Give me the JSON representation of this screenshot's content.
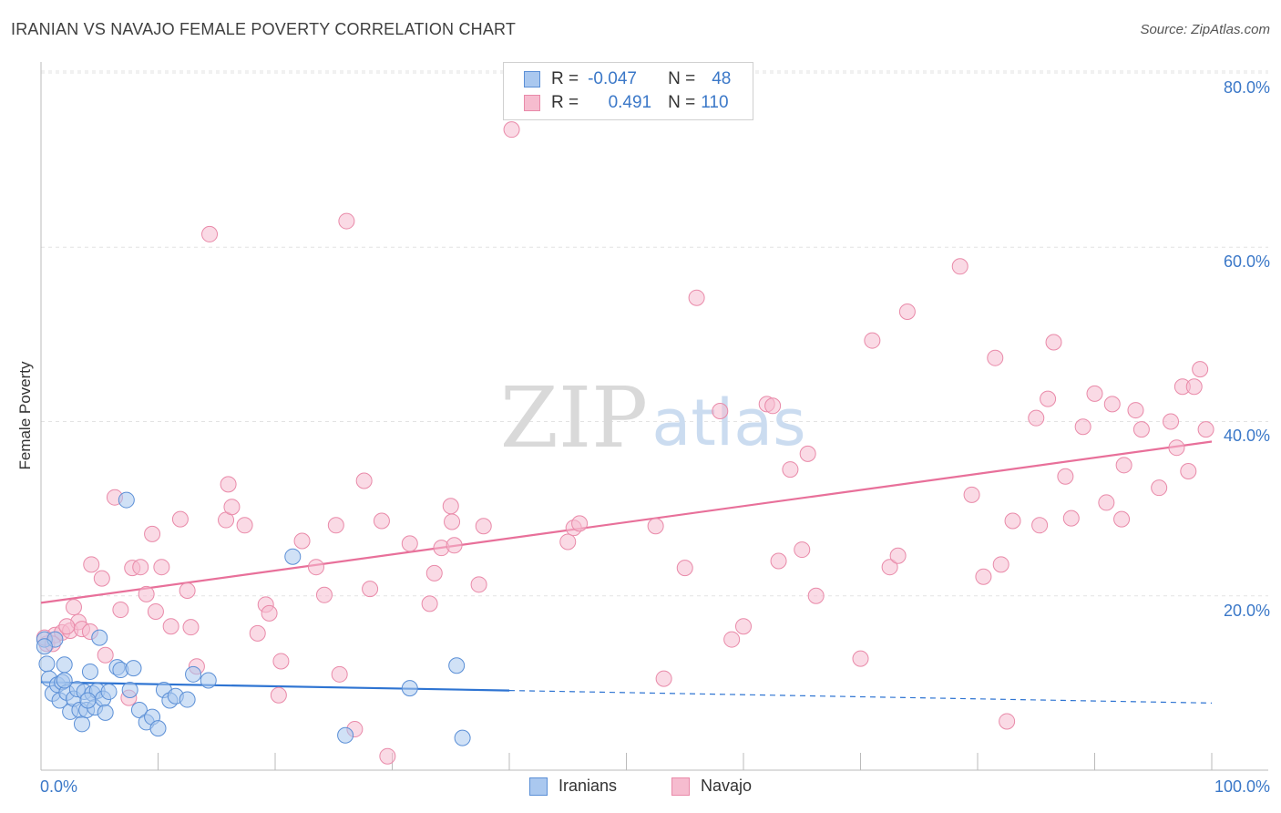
{
  "title": "IRANIAN VS NAVAJO FEMALE POVERTY CORRELATION CHART",
  "source": "Source: ZipAtlas.com",
  "watermark": {
    "zip": "ZIP",
    "atlas": "atlas"
  },
  "colors": {
    "iranians_fill": "#aac8ef",
    "iranians_stroke": "#5b8fd6",
    "iranians_line": "#2e74d2",
    "navajo_fill": "#f6bccf",
    "navajo_stroke": "#e98aa9",
    "navajo_line": "#e8709a",
    "tick_text": "#3b78c8",
    "grid": "#e3e3e3"
  },
  "legend_top": {
    "rows": [
      {
        "r_label": "R =",
        "r_value": "-0.047",
        "n_label": "N =",
        "n_value": "48"
      },
      {
        "r_label": "R =",
        "r_value": "0.491",
        "n_label": "N =",
        "n_value": "110"
      }
    ]
  },
  "legend_bottom": [
    "Iranians",
    "Navajo"
  ],
  "chart_data": {
    "type": "scatter",
    "ylabel": "Female Poverty",
    "xlabel": "",
    "xlim": [
      0,
      100
    ],
    "ylim": [
      0,
      80
    ],
    "x_tick_labels": [
      "0.0%",
      "100.0%"
    ],
    "y_tick_values": [
      20,
      40,
      60,
      80
    ],
    "y_tick_labels": [
      "20.0%",
      "40.0%",
      "60.0%",
      "80.0%"
    ],
    "series": [
      {
        "name": "Iranians",
        "trend": {
          "x0": 0,
          "y0": 10.1,
          "x_solid_end": 40,
          "x1": 100,
          "y1": 7.7
        },
        "points": [
          [
            0.3,
            15
          ],
          [
            0.5,
            12.2
          ],
          [
            0.7,
            10.5
          ],
          [
            1.0,
            8.8
          ],
          [
            1.2,
            15
          ],
          [
            1.4,
            9.8
          ],
          [
            1.6,
            8.0
          ],
          [
            1.8,
            10.1
          ],
          [
            2.0,
            12.1
          ],
          [
            2.2,
            8.9
          ],
          [
            2.5,
            6.7
          ],
          [
            2.8,
            8.2
          ],
          [
            3.1,
            9.3
          ],
          [
            3.3,
            6.9
          ],
          [
            3.5,
            5.3
          ],
          [
            3.7,
            9.0
          ],
          [
            3.9,
            6.9
          ],
          [
            4.2,
            11.3
          ],
          [
            4.4,
            8.8
          ],
          [
            4.6,
            7.2
          ],
          [
            4.8,
            9.1
          ],
          [
            5.0,
            15.2
          ],
          [
            5.3,
            8.2
          ],
          [
            5.5,
            6.6
          ],
          [
            5.8,
            9.0
          ],
          [
            6.5,
            11.8
          ],
          [
            6.8,
            11.5
          ],
          [
            7.3,
            31
          ],
          [
            7.6,
            9.2
          ],
          [
            7.9,
            11.7
          ],
          [
            8.4,
            6.9
          ],
          [
            9.0,
            5.5
          ],
          [
            9.5,
            6.1
          ],
          [
            10.0,
            4.8
          ],
          [
            10.5,
            9.2
          ],
          [
            11.0,
            8.0
          ],
          [
            11.5,
            8.5
          ],
          [
            12.5,
            8.1
          ],
          [
            13.0,
            11.0
          ],
          [
            14.3,
            10.3
          ],
          [
            21.5,
            24.5
          ],
          [
            26.0,
            4.0
          ],
          [
            31.5,
            9.4
          ],
          [
            35.5,
            12.0
          ],
          [
            36.0,
            3.7
          ],
          [
            0.3,
            14.2
          ],
          [
            2.0,
            10.3
          ],
          [
            4.0,
            8.0
          ]
        ]
      },
      {
        "name": "Navajo",
        "trend": {
          "x0": 0,
          "y0": 19.2,
          "x1": 100,
          "y1": 37.7
        },
        "points": [
          [
            0.5,
            14.5
          ],
          [
            1.2,
            15.5
          ],
          [
            1.8,
            15.8
          ],
          [
            2.5,
            16.0
          ],
          [
            2.8,
            18.7
          ],
          [
            3.2,
            17.0
          ],
          [
            3.5,
            16.2
          ],
          [
            4.2,
            15.9
          ],
          [
            4.3,
            23.6
          ],
          [
            5.2,
            22.0
          ],
          [
            5.5,
            13.2
          ],
          [
            6.3,
            31.3
          ],
          [
            6.8,
            18.4
          ],
          [
            7.5,
            8.3
          ],
          [
            7.8,
            23.2
          ],
          [
            8.5,
            23.3
          ],
          [
            9.0,
            20.2
          ],
          [
            9.5,
            27.1
          ],
          [
            9.8,
            18.2
          ],
          [
            10.3,
            23.3
          ],
          [
            11.1,
            16.5
          ],
          [
            11.9,
            28.8
          ],
          [
            12.5,
            20.6
          ],
          [
            12.8,
            16.4
          ],
          [
            13.3,
            11.9
          ],
          [
            14.4,
            61.5
          ],
          [
            15.8,
            28.7
          ],
          [
            16.0,
            32.8
          ],
          [
            16.3,
            30.2
          ],
          [
            17.4,
            28.1
          ],
          [
            18.5,
            15.7
          ],
          [
            19.2,
            19.0
          ],
          [
            19.5,
            18.0
          ],
          [
            20.3,
            8.6
          ],
          [
            20.5,
            12.5
          ],
          [
            22.3,
            26.3
          ],
          [
            23.5,
            23.3
          ],
          [
            24.2,
            20.1
          ],
          [
            25.2,
            28.1
          ],
          [
            25.5,
            11.0
          ],
          [
            26.1,
            63.0
          ],
          [
            26.8,
            4.7
          ],
          [
            27.6,
            33.2
          ],
          [
            28.1,
            20.8
          ],
          [
            29.1,
            28.6
          ],
          [
            29.6,
            1.6
          ],
          [
            31.5,
            26.0
          ],
          [
            33.2,
            19.1
          ],
          [
            33.6,
            22.6
          ],
          [
            34.2,
            25.5
          ],
          [
            35.0,
            30.3
          ],
          [
            35.1,
            28.5
          ],
          [
            35.3,
            25.8
          ],
          [
            37.4,
            21.3
          ],
          [
            37.8,
            28.0
          ],
          [
            40.2,
            73.5
          ],
          [
            45.0,
            26.2
          ],
          [
            45.5,
            27.8
          ],
          [
            46.0,
            28.3
          ],
          [
            52.5,
            28.0
          ],
          [
            53.2,
            10.5
          ],
          [
            55.0,
            23.2
          ],
          [
            56.0,
            54.2
          ],
          [
            58.0,
            41.2
          ],
          [
            59.0,
            15.0
          ],
          [
            60.0,
            16.5
          ],
          [
            62.0,
            42.0
          ],
          [
            62.5,
            41.8
          ],
          [
            63.0,
            24.0
          ],
          [
            64.0,
            34.5
          ],
          [
            65.0,
            25.3
          ],
          [
            65.5,
            36.3
          ],
          [
            66.2,
            20.0
          ],
          [
            70.0,
            12.8
          ],
          [
            71.0,
            49.3
          ],
          [
            72.5,
            23.3
          ],
          [
            73.2,
            24.6
          ],
          [
            74.0,
            52.6
          ],
          [
            78.5,
            57.8
          ],
          [
            79.5,
            31.6
          ],
          [
            80.5,
            22.2
          ],
          [
            81.5,
            47.3
          ],
          [
            82.0,
            23.6
          ],
          [
            82.5,
            5.6
          ],
          [
            83.0,
            28.6
          ],
          [
            85.0,
            40.4
          ],
          [
            85.3,
            28.1
          ],
          [
            86.0,
            42.6
          ],
          [
            86.5,
            49.1
          ],
          [
            87.5,
            33.7
          ],
          [
            88.0,
            28.9
          ],
          [
            89.0,
            39.4
          ],
          [
            90.0,
            43.2
          ],
          [
            91.0,
            30.7
          ],
          [
            91.5,
            42.0
          ],
          [
            92.3,
            28.8
          ],
          [
            92.5,
            35.0
          ],
          [
            93.5,
            41.3
          ],
          [
            94.0,
            39.1
          ],
          [
            95.5,
            32.4
          ],
          [
            96.5,
            40.0
          ],
          [
            97.0,
            37.0
          ],
          [
            97.5,
            44.0
          ],
          [
            98.0,
            34.3
          ],
          [
            98.5,
            44.0
          ],
          [
            99.0,
            46.0
          ],
          [
            99.5,
            39.1
          ],
          [
            0.3,
            15.2
          ],
          [
            1.0,
            14.5
          ],
          [
            2.2,
            16.5
          ]
        ]
      }
    ]
  }
}
